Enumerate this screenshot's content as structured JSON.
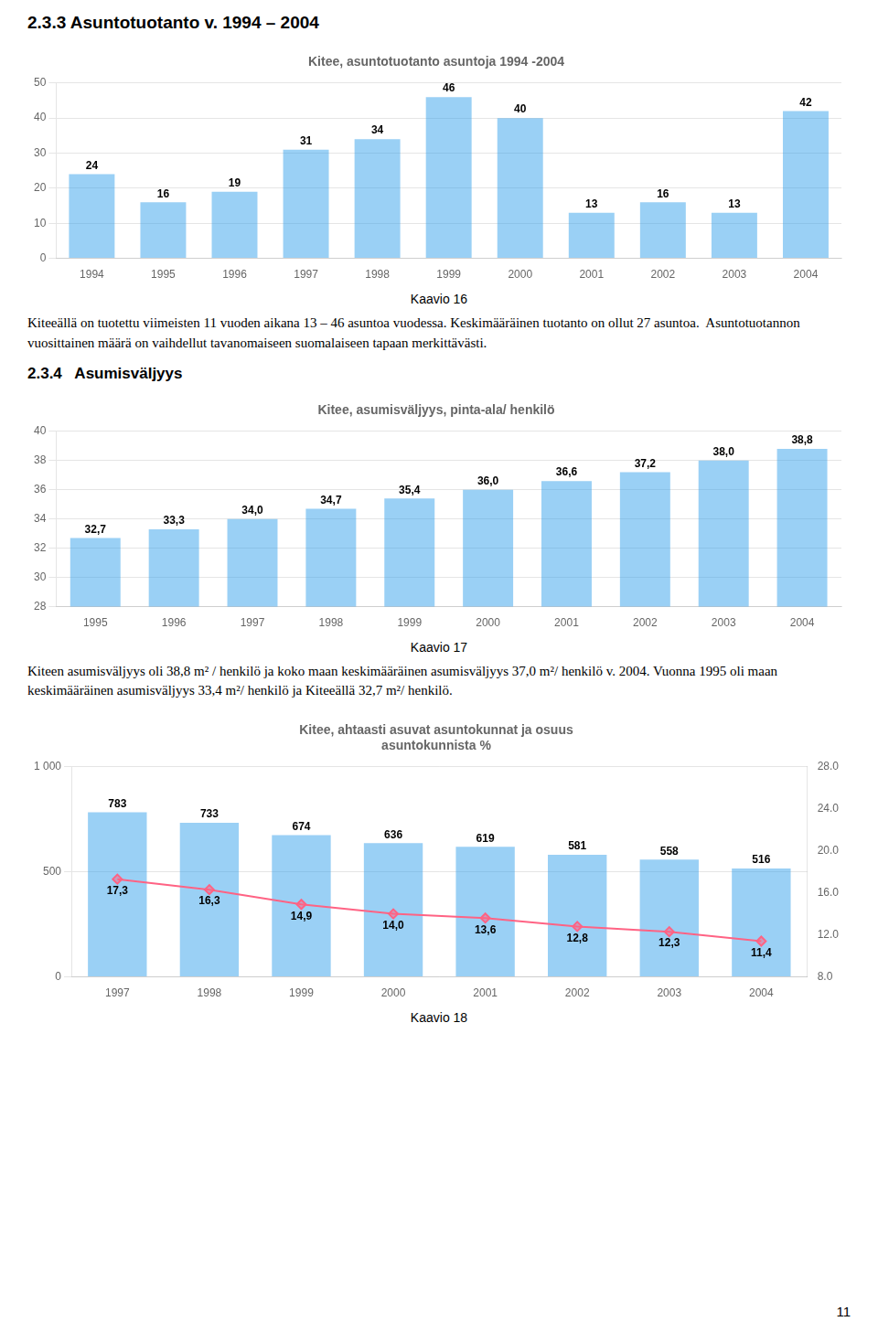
{
  "page_title": "2.3.3 Asuntotuotanto v. 1994 – 2004",
  "chart_data": [
    {
      "type": "bar",
      "title": "Kitee, asuntotuotanto asuntoja 1994 -2004",
      "categories": [
        "1994",
        "1995",
        "1996",
        "1997",
        "1998",
        "1999",
        "2000",
        "2001",
        "2002",
        "2003",
        "2004"
      ],
      "values": [
        24,
        16,
        19,
        31,
        34,
        46,
        40,
        13,
        16,
        13,
        42
      ],
      "ylim": [
        0,
        50
      ],
      "yticks": [
        0,
        10,
        20,
        30,
        40,
        50
      ],
      "grid": true,
      "data_labels": true,
      "caption": "Kaavio 16"
    },
    {
      "type": "bar",
      "title": "Kitee, asumisväljyys, pinta-ala/ henkilö",
      "categories": [
        "1995",
        "1996",
        "1997",
        "1998",
        "1999",
        "2000",
        "2001",
        "2002",
        "2003",
        "2004"
      ],
      "values": [
        32.7,
        33.3,
        34.0,
        34.7,
        35.4,
        36.0,
        36.6,
        37.2,
        38.0,
        38.8
      ],
      "value_labels": [
        "32,7",
        "33,3",
        "34,0",
        "34,7",
        "35,4",
        "36,0",
        "36,6",
        "37,2",
        "38,0",
        "38,8"
      ],
      "ylim": [
        28,
        40
      ],
      "yticks": [
        28,
        30,
        32,
        34,
        36,
        38,
        40
      ],
      "grid": true,
      "data_labels": true,
      "caption": "Kaavio 17"
    },
    {
      "type": "bar",
      "title": "Kitee, ahtaasti asuvat asuntokunnat ja osuus\nasuntokunnista %",
      "categories": [
        "1997",
        "1998",
        "1999",
        "2000",
        "2001",
        "2002",
        "2003",
        "2004"
      ],
      "series": [
        {
          "type": "bar",
          "values": [
            783,
            733,
            674,
            636,
            619,
            581,
            558,
            516
          ]
        },
        {
          "type": "line",
          "axis": "y2",
          "marker": "diamond",
          "values": [
            17.3,
            16.3,
            14.9,
            14.0,
            13.6,
            12.8,
            12.3,
            11.4
          ],
          "value_labels": [
            "17,3",
            "16,3",
            "14,9",
            "14,0",
            "13,6",
            "12,8",
            "12,3",
            "11,4"
          ]
        }
      ],
      "ylim": [
        0,
        1000
      ],
      "yticks": [
        0,
        500,
        {
          "value": 1000,
          "label": "1 000"
        }
      ],
      "y2lim": [
        8.0,
        28.0
      ],
      "y2ticks": [
        {
          "value": 8.0,
          "label": "8.0"
        },
        {
          "value": 12.0,
          "label": "12.0"
        },
        {
          "value": 16.0,
          "label": "16.0"
        },
        {
          "value": 20.0,
          "label": "20.0"
        },
        {
          "value": 24.0,
          "label": "24.0"
        },
        {
          "value": 28.0,
          "label": "28.0"
        }
      ],
      "grid": true,
      "data_labels": true,
      "caption": "Kaavio 18"
    }
  ],
  "text1": "Kiteeällä on tuotettu viimeisten 11 vuoden aikana 13 – 46 asuntoa vuodessa. Keskimääräinen tuotanto on ollut 27 asuntoa.  Asuntotuotannon vuosittainen määrä on vaihdellut tavanomaiseen suomalaiseen tapaan merkittävästi.",
  "section2_title": "2.3.4   Asumisväljyys",
  "text2": "Kiteen asumisväljyys oli 38,8 m² / henkilö ja koko maan keskimääräinen asumisväljyys 37,0 m²/ henkilö v. 2004. Vuonna 1995 oli maan keskimääräinen asumisväljyys 33,4 m²/ henkilö ja Kiteeällä 32,7 m²/ henkilö.",
  "page_number": "11"
}
